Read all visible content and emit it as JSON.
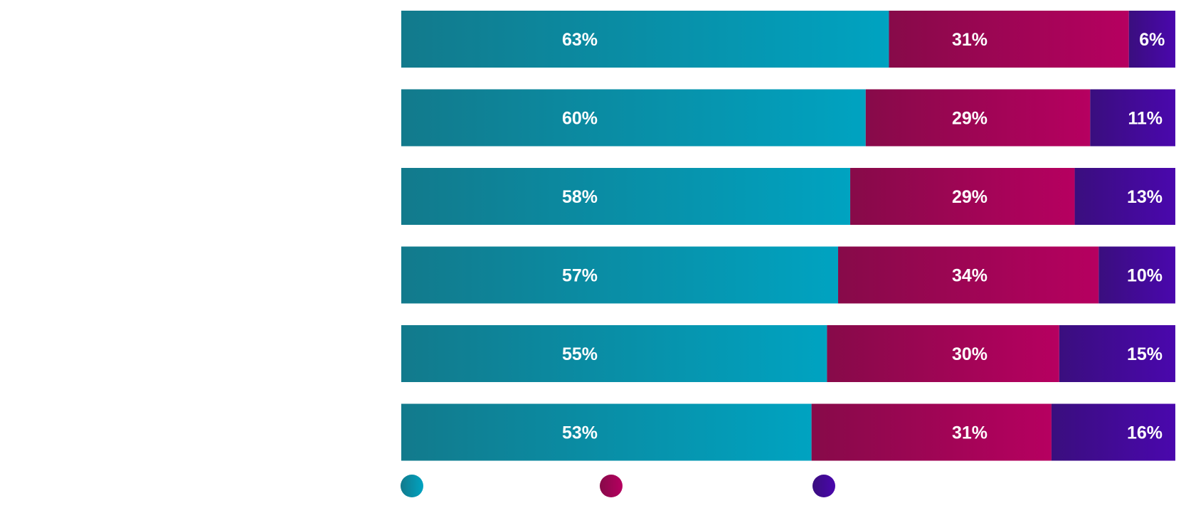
{
  "chart_data": {
    "type": "bar",
    "orientation": "horizontal",
    "stacked": true,
    "normalized": true,
    "title": "",
    "xlabel": "",
    "ylabel": "",
    "categories": [
      "",
      "",
      "",
      "",
      "",
      ""
    ],
    "series": [
      {
        "colors": [
          "#127a8c",
          "#00a3c1"
        ],
        "values": [
          63,
          60,
          58,
          57,
          55,
          53
        ],
        "labels": [
          "63%",
          "60%",
          "58%",
          "57%",
          "55%",
          "53%"
        ]
      },
      {
        "colors": [
          "#870a49",
          "#b60060"
        ],
        "values": [
          31,
          29,
          29,
          34,
          30,
          31
        ],
        "labels": [
          "31%",
          "29%",
          "29%",
          "34%",
          "30%",
          "31%"
        ]
      },
      {
        "colors": [
          "#3a0e7e",
          "#4a07ad"
        ],
        "values": [
          6,
          11,
          13,
          10,
          15,
          16
        ],
        "labels": [
          "6%",
          "11%",
          "13%",
          "10%",
          "15%",
          "16%"
        ]
      }
    ],
    "legend": {
      "position": "bottom",
      "labels": [
        "",
        "",
        ""
      ]
    },
    "grid": false
  }
}
